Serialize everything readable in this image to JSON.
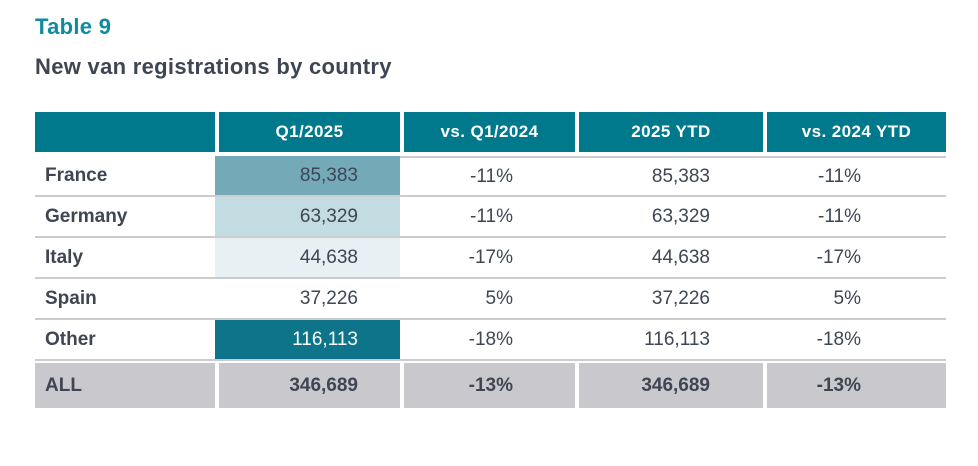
{
  "page": {
    "title": "Table 9",
    "subtitle": "New van registrations by country"
  },
  "table": {
    "columns": {
      "country": "",
      "q1": "Q1/2025",
      "vs_q1": "vs. Q1/2024",
      "ytd": "2025 YTD",
      "vs_ytd": "vs. 2024 YTD"
    },
    "rows": [
      {
        "country": "France",
        "q1": "85,383",
        "vs_q1": "-11%",
        "ytd": "85,383",
        "vs_ytd": "-11%",
        "q1_style": "background:#74a9b8;color:#3e4653"
      },
      {
        "country": "Germany",
        "q1": "63,329",
        "vs_q1": "-11%",
        "ytd": "63,329",
        "vs_ytd": "-11%",
        "q1_style": "background:#c3dce2;color:#3e4653"
      },
      {
        "country": "Italy",
        "q1": "44,638",
        "vs_q1": "-17%",
        "ytd": "44,638",
        "vs_ytd": "-17%",
        "q1_style": "background:#e7f0f3;color:#3e4653"
      },
      {
        "country": "Spain",
        "q1": "37,226",
        "vs_q1": "5%",
        "ytd": "37,226",
        "vs_ytd": "5%",
        "q1_style": "background:transparent;color:#3e4653"
      },
      {
        "country": "Other",
        "q1": "116,113",
        "vs_q1": "-18%",
        "ytd": "116,113",
        "vs_ytd": "-18%",
        "q1_style": "background:#0d7489;color:#ffffff"
      }
    ],
    "total": {
      "country": "ALL",
      "q1": "346,689",
      "vs_q1": "-13%",
      "ytd": "346,689",
      "vs_ytd": "-13%"
    }
  },
  "colors": {
    "title_teal": "#0f8ba0",
    "header_teal": "#00798d",
    "heat_strong": "#74a9b8",
    "heat_medium": "#c3dce2",
    "heat_light": "#e7f0f3",
    "heat_darkest": "#0d7489",
    "total_row_gray": "#c9c9cd",
    "row_divider_gray": "#cbccce",
    "text_dark": "#3e4653"
  },
  "chart_data": {
    "type": "table",
    "title": "Table 9 — New van registrations by country",
    "columns": [
      "Q1/2025",
      "vs. Q1/2024",
      "2025 YTD",
      "vs. 2024 YTD"
    ],
    "rows": [
      {
        "label": "France",
        "values": [
          85383,
          "-11%",
          85383,
          "-11%"
        ]
      },
      {
        "label": "Germany",
        "values": [
          63329,
          "-11%",
          63329,
          "-11%"
        ]
      },
      {
        "label": "Italy",
        "values": [
          44638,
          "-17%",
          44638,
          "-17%"
        ]
      },
      {
        "label": "Spain",
        "values": [
          37226,
          "5%",
          37226,
          "5%"
        ]
      },
      {
        "label": "Other",
        "values": [
          116113,
          "-18%",
          116113,
          "-18%"
        ]
      },
      {
        "label": "ALL",
        "values": [
          346689,
          "-13%",
          346689,
          "-13%"
        ]
      }
    ]
  }
}
